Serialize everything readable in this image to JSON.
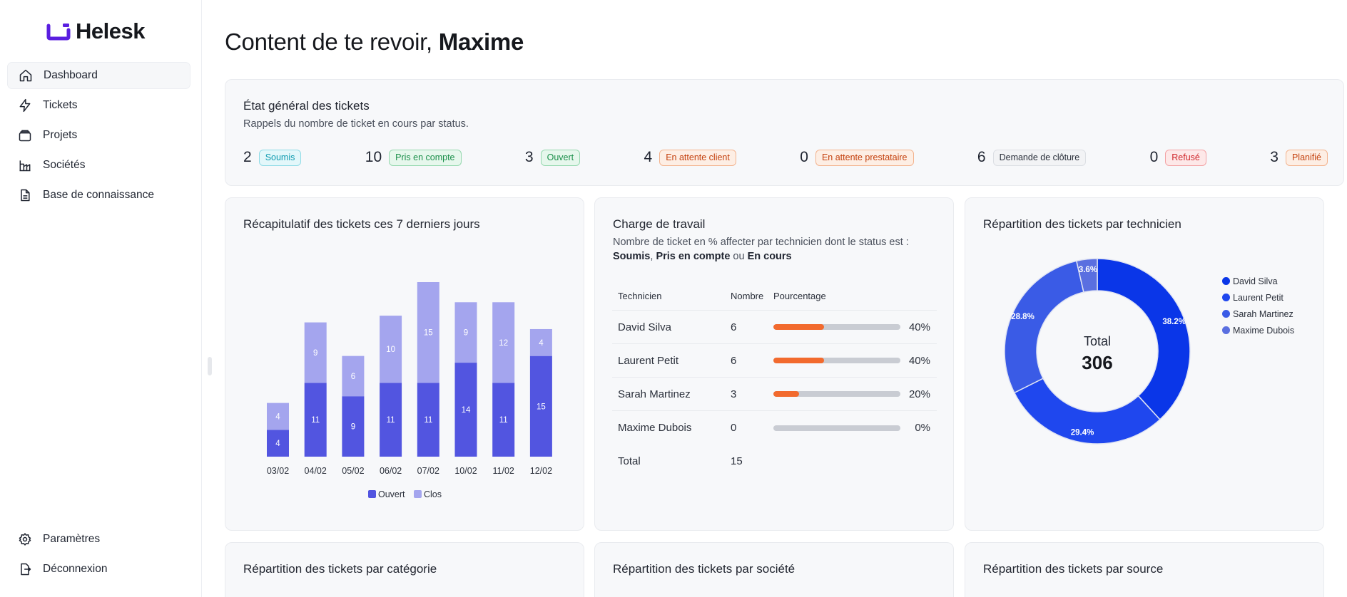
{
  "app": {
    "name": "Helesk"
  },
  "sidebar": {
    "items": [
      {
        "label": "Dashboard",
        "icon": "home-icon",
        "active": true
      },
      {
        "label": "Tickets",
        "icon": "bolt-icon"
      },
      {
        "label": "Projets",
        "icon": "folder-icon"
      },
      {
        "label": "Sociétés",
        "icon": "building-icon"
      },
      {
        "label": "Base de connaissance",
        "icon": "document-icon"
      }
    ],
    "bottom": [
      {
        "label": "Paramètres",
        "icon": "gear-icon"
      },
      {
        "label": "Déconnexion",
        "icon": "logout-icon"
      }
    ]
  },
  "header": {
    "greeting": "Content de te revoir,",
    "user": "Maxime"
  },
  "status_card": {
    "title": "État général des tickets",
    "subtitle": "Rappels du nombre de ticket en cours par status.",
    "items": [
      {
        "count": "2",
        "label": "Soumis",
        "color": "#0e9bb0",
        "bg": "#e3f7fa",
        "border": "#8fdbe6"
      },
      {
        "count": "10",
        "label": "Pris en compte",
        "color": "#1b8f4a",
        "bg": "#e6f7ec",
        "border": "#95d8ae"
      },
      {
        "count": "3",
        "label": "Ouvert",
        "color": "#1b8f4a",
        "bg": "#e6f7ec",
        "border": "#95d8ae"
      },
      {
        "count": "4",
        "label": "En attente client",
        "color": "#c4410e",
        "bg": "#fdeee4",
        "border": "#f3b48f"
      },
      {
        "count": "0",
        "label": "En attente prestataire",
        "color": "#c4410e",
        "bg": "#fdeee4",
        "border": "#f3b48f"
      },
      {
        "count": "6",
        "label": "Demande de clôture",
        "color": "#2a2f3a",
        "bg": "#f2f3f5",
        "border": "#dcdfe4"
      },
      {
        "count": "0",
        "label": "Refusé",
        "color": "#d0262b",
        "bg": "#fde8e8",
        "border": "#f3a3a5"
      },
      {
        "count": "3",
        "label": "Planifié",
        "color": "#c4410e",
        "bg": "#fdeee4",
        "border": "#f3b48f"
      }
    ]
  },
  "recap_card": {
    "title": "Récapitulatif des tickets ces 7 derniers jours"
  },
  "workload_card": {
    "title": "Charge de travail",
    "subtitle_line1": "Nombre de ticket en % affecter par technicien dont le status est :",
    "status_a": "Soumis",
    "sep1": ", ",
    "status_b": "Pris en compte",
    "sep2": " ou ",
    "status_c": "En cours",
    "columns": [
      "Technicien",
      "Nombre",
      "Pourcentage"
    ],
    "rows": [
      {
        "name": "David Silva",
        "count": "6",
        "pct": 40,
        "pct_label": "40%"
      },
      {
        "name": "Laurent Petit",
        "count": "6",
        "pct": 40,
        "pct_label": "40%"
      },
      {
        "name": "Sarah Martinez",
        "count": "3",
        "pct": 20,
        "pct_label": "20%"
      },
      {
        "name": "Maxime Dubois",
        "count": "0",
        "pct": 0,
        "pct_label": "0%"
      }
    ],
    "total_label": "Total",
    "total_value": "15"
  },
  "donut_card": {
    "title": "Répartition des tickets par technicien",
    "center_label": "Total",
    "center_value": "306"
  },
  "bottom_cards": [
    {
      "title": "Répartition des tickets par catégorie"
    },
    {
      "title": "Répartition des tickets par société"
    },
    {
      "title": "Répartition des tickets par source"
    }
  ],
  "chart_data": [
    {
      "type": "bar",
      "stacked": true,
      "categories": [
        "03/02",
        "04/02",
        "05/02",
        "06/02",
        "07/02",
        "10/02",
        "11/02",
        "12/02"
      ],
      "series": [
        {
          "name": "Ouvert",
          "values": [
            4,
            11,
            9,
            11,
            11,
            14,
            11,
            15
          ],
          "color": "#5255e0"
        },
        {
          "name": "Clos",
          "values": [
            4,
            9,
            6,
            10,
            15,
            9,
            12,
            4
          ],
          "color": "#a4a5ee"
        }
      ],
      "ylim": [
        0,
        27
      ],
      "legend": "bottom",
      "grid": false
    },
    {
      "type": "pie",
      "donut": true,
      "labels": [
        "David Silva",
        "Laurent Petit",
        "Sarah Martinez",
        "Maxime Dubois"
      ],
      "values": [
        38.2,
        29.4,
        28.8,
        3.6
      ],
      "value_labels": [
        "38.2%",
        "29.4%",
        "28.8%",
        "3.6%"
      ],
      "colors": [
        "#0a36e8",
        "#1f47ee",
        "#3a5be6",
        "#5a6fe0"
      ],
      "legend": "right"
    }
  ]
}
